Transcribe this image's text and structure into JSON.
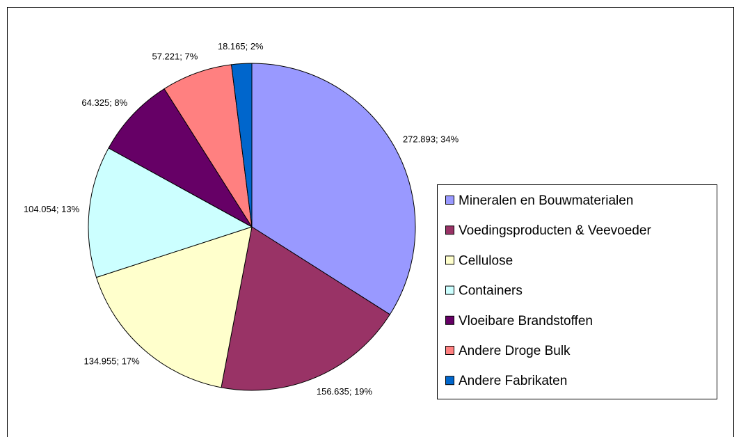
{
  "chart_data": {
    "type": "pie",
    "categories": [
      "Mineralen en Bouwmaterialen",
      "Voedingsproducten & Veevoeder",
      "Cellulose",
      "Containers",
      "Vloeibare Brandstoffen",
      "Andere Droge Bulk",
      "Andere Fabrikaten"
    ],
    "values": [
      34,
      19,
      17,
      13,
      8,
      7,
      2
    ],
    "value_labels": [
      "272.893; 34%",
      "156.635; 19%",
      "134.955; 17%",
      "104.054; 13%",
      "64.325; 8%",
      "57.221; 7%",
      "18.165; 2%"
    ],
    "colors": [
      "#9999ff",
      "#993366",
      "#ffffcc",
      "#ccffff",
      "#660066",
      "#ff8080",
      "#0066cc"
    ],
    "legend": "right"
  }
}
